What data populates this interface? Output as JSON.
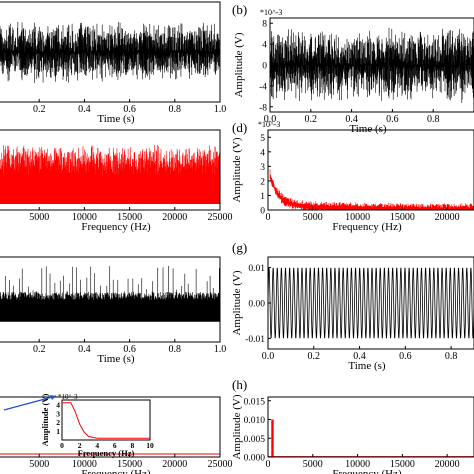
{
  "figure": {
    "panels": [
      {
        "id": "a-partial",
        "label": "",
        "type": "line",
        "style": "noise",
        "color": "#000000",
        "xlabel": "Time (s)",
        "ylabel": "",
        "xlim": [
          0,
          1
        ],
        "ylim": [
          -8,
          8
        ],
        "xticks": [
          0.2,
          0.4,
          0.6,
          0.8,
          1.0
        ],
        "xtick_labels": [
          "0.2",
          "0.4",
          "0.6",
          "0.8",
          "1.0"
        ],
        "yticks": [],
        "ytick_labels": [],
        "exponent": ""
      },
      {
        "id": "b",
        "label": "(b)",
        "type": "line",
        "style": "noise",
        "color": "#000000",
        "xlabel": "Time (s)",
        "ylabel": "Amplitude (V)",
        "xlim": [
          0,
          1
        ],
        "ylim": [
          -9,
          9
        ],
        "xticks": [
          0,
          0.2,
          0.4,
          0.6,
          0.8
        ],
        "xtick_labels": [
          "0.0",
          "0.2",
          "0.4",
          "0.6",
          "0.8"
        ],
        "yticks": [
          -8,
          -4,
          0,
          4,
          8
        ],
        "ytick_labels": [
          "-8",
          "-4",
          "0",
          "4",
          "8"
        ],
        "exponent": "*10^-3"
      },
      {
        "id": "c-partial",
        "label": "",
        "type": "spectrum",
        "style": "noise-band",
        "color": "#ff0000",
        "xlabel": "Frequency (Hz)",
        "ylabel": "",
        "xlim": [
          0,
          25000
        ],
        "ylim": [
          0,
          1
        ],
        "xticks": [
          5000,
          10000,
          15000,
          20000,
          25000
        ],
        "xtick_labels": [
          "5000",
          "10000",
          "15000",
          "20000",
          "25000"
        ],
        "yticks": [],
        "ytick_labels": [],
        "exponent": ""
      },
      {
        "id": "d",
        "label": "(d)",
        "type": "spectrum",
        "style": "decay",
        "color": "#ff0000",
        "xlabel": "Frequency (Hz)",
        "ylabel": "Amplitude (V)",
        "xlim": [
          0,
          23000
        ],
        "ylim": [
          0,
          5.5
        ],
        "xticks": [
          0,
          5000,
          10000,
          15000,
          20000
        ],
        "xtick_labels": [
          "0",
          "5000",
          "10000",
          "15000",
          "20000"
        ],
        "yticks": [
          0,
          1,
          2,
          3,
          4,
          5
        ],
        "ytick_labels": [
          "0",
          "1",
          "2",
          "3",
          "4",
          "5"
        ],
        "exponent": "*10^-3"
      },
      {
        "id": "e-partial",
        "label": "",
        "type": "line",
        "style": "spikes",
        "color": "#000000",
        "xlabel": "Time (s)",
        "ylabel": "",
        "xlim": [
          0,
          1
        ],
        "ylim": [
          -1,
          1
        ],
        "xticks": [
          0.2,
          0.4,
          0.6,
          0.8,
          1.0
        ],
        "xtick_labels": [
          "0.2",
          "0.4",
          "0.6",
          "0.8",
          "1.0"
        ],
        "yticks": [],
        "ytick_labels": [],
        "exponent": ""
      },
      {
        "id": "g",
        "label": "(g)",
        "type": "line",
        "style": "sine",
        "color": "#000000",
        "cycles": 50,
        "xlabel": "Time (s)",
        "ylabel": "Amplitude (V)",
        "xlim": [
          0,
          0.9
        ],
        "ylim": [
          -0.013,
          0.013
        ],
        "xticks": [
          0,
          0.2,
          0.4,
          0.6,
          0.8
        ],
        "xtick_labels": [
          "0.0",
          "0.2",
          "0.4",
          "0.6",
          "0.8"
        ],
        "yticks": [
          -0.01,
          0,
          0.01
        ],
        "ytick_labels": [
          "-0.01",
          "0.00",
          "0.01"
        ],
        "exponent": ""
      },
      {
        "id": "f-partial",
        "label": "",
        "type": "spectrum",
        "style": "flat",
        "color": "#ff0000",
        "xlabel": "Frequency (Hz)",
        "ylabel": "",
        "xlim": [
          0,
          25000
        ],
        "ylim": [
          0,
          1
        ],
        "xticks": [
          5000,
          10000,
          15000,
          20000,
          25000
        ],
        "xtick_labels": [
          "5000",
          "10000",
          "15000",
          "20000",
          "25000"
        ],
        "yticks": [],
        "ytick_labels": [],
        "exponent": ""
      },
      {
        "id": "h",
        "label": "(h)",
        "type": "spectrum",
        "style": "peak",
        "color": "#ff0000",
        "xlabel": "Frequency (Hz)",
        "ylabel": "Amplitude (V)",
        "xlim": [
          0,
          23000
        ],
        "ylim": [
          0,
          0.016
        ],
        "xticks": [
          0,
          5000,
          10000,
          15000,
          20000
        ],
        "xtick_labels": [
          "0",
          "5000",
          "10000",
          "15000",
          "20000"
        ],
        "yticks": [
          0,
          0.005,
          0.01,
          0.015
        ],
        "ytick_labels": [
          "0.000",
          "0.005",
          "0.010",
          "0.015"
        ],
        "exponent": ""
      }
    ],
    "inset": {
      "xlabel": "Frequency (Hz)",
      "ylabel": "Amplitude (V)",
      "xlim": [
        0,
        10
      ],
      "ylim": [
        0,
        4.5
      ],
      "xticks": [
        0,
        2,
        4,
        6,
        8,
        10
      ],
      "xtick_labels": [
        "0",
        "2",
        "4",
        "6",
        "8",
        "10"
      ],
      "yticks": [
        1,
        2,
        3,
        4
      ],
      "ytick_labels": [
        "1",
        "2",
        "3",
        "4"
      ],
      "exponent": "*10^-3",
      "color": "#ff0000"
    }
  },
  "chart_data": [
    {
      "type": "line",
      "title": "",
      "xlabel": "Time (s)",
      "ylabel": "",
      "xlim": [
        0,
        1
      ],
      "description_values": {
        "x_ticks": [
          0.2,
          0.4,
          0.6,
          0.8,
          1.0
        ]
      },
      "series": [
        {
          "values_summary": "dense random noise"
        }
      ]
    },
    {
      "type": "line",
      "title": "(b)",
      "xlabel": "Time (s)",
      "ylabel": "Amplitude (V)",
      "xlim": [
        0,
        1
      ],
      "ylim": [
        -0.009,
        0.009
      ],
      "y_multiplier": "1e-3",
      "series": [
        {
          "values_summary": "random noise, peak amplitude ~8e-3 V"
        }
      ]
    },
    {
      "type": "area",
      "title": "",
      "xlabel": "Frequency (Hz)",
      "ylabel": "",
      "xlim": [
        0,
        25000
      ],
      "series": [
        {
          "values_summary": "broadband noise spectrum"
        }
      ]
    },
    {
      "type": "line",
      "title": "(d)",
      "xlabel": "Frequency (Hz)",
      "ylabel": "Amplitude (V)",
      "xlim": [
        0,
        23000
      ],
      "ylim": [
        0,
        0.0055
      ],
      "y_multiplier": "1e-3",
      "series": [
        {
          "values_summary": "peak ~2.5e-3 V near 0 Hz decaying to ~0.2e-3 V"
        }
      ]
    },
    {
      "type": "line",
      "title": "",
      "xlabel": "Time (s)",
      "ylabel": "",
      "xlim": [
        0,
        1
      ],
      "series": [
        {
          "values_summary": "impulse train of random spikes"
        }
      ]
    },
    {
      "type": "line",
      "title": "(g)",
      "xlabel": "Time (s)",
      "ylabel": "Amplitude (V)",
      "xlim": [
        0,
        0.9
      ],
      "ylim": [
        -0.013,
        0.013
      ],
      "series": [
        {
          "values_summary": "sinusoid amplitude 0.01 V"
        }
      ]
    },
    {
      "type": "line",
      "title": "",
      "xlabel": "Frequency (Hz)",
      "ylabel": "",
      "xlim": [
        0,
        25000
      ],
      "series": [
        {
          "values_summary": "near zero across band"
        }
      ],
      "inset": {
        "xlabel": "Frequency (Hz)",
        "ylabel": "Amplitude (V)",
        "xlim": [
          0,
          10
        ],
        "x": [
          0,
          1,
          1.5,
          2,
          2.5,
          3,
          4,
          6,
          8,
          10
        ],
        "y": [
          4.2,
          4.2,
          3.2,
          1.8,
          0.9,
          0.4,
          0.2,
          0.2,
          0.2,
          0.2
        ]
      }
    },
    {
      "type": "bar",
      "title": "(h)",
      "xlabel": "Frequency (Hz)",
      "ylabel": "Amplitude (V)",
      "xlim": [
        0,
        23000
      ],
      "ylim": [
        0,
        0.016
      ],
      "x": [
        500
      ],
      "values": [
        0.01
      ]
    }
  ]
}
